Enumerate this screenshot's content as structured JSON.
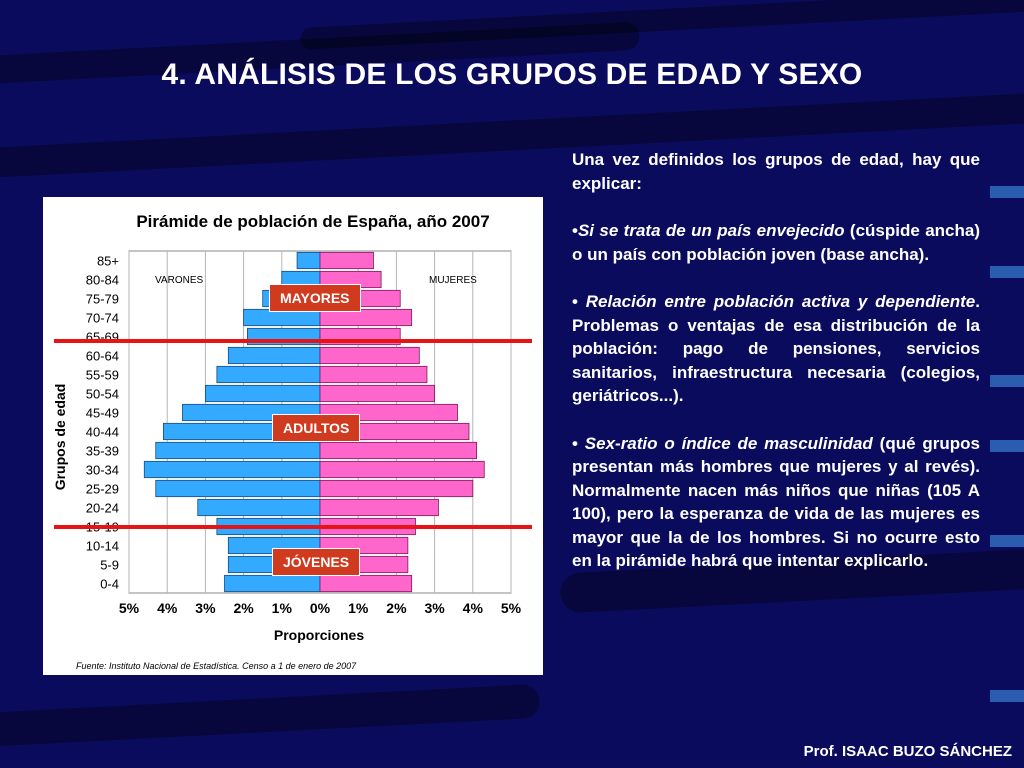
{
  "slide": {
    "title": "4. ANÁLISIS DE LOS GRUPOS DE EDAD Y SEXO",
    "credit": "Prof. ISAAC BUZO SÁNCHEZ"
  },
  "colors": {
    "background": "#0b0b5e",
    "male_bar": "#33aaff",
    "female_bar": "#ff66cc",
    "label_box": "#d03a1e",
    "red_line": "#e61414"
  },
  "regions": {
    "mayores": "MAYORES",
    "adultos": "ADULTOS",
    "jovenes": "JÓVENES"
  },
  "text": {
    "intro": "Una vez definidos los grupos de edad, hay que explicar:",
    "b1_em": "Si se trata de un país envejecido",
    "b1_rest": " (cúspide ancha) o un país con población joven (base ancha).",
    "b2_em": "Relación entre población activa y dependiente",
    "b2_rest": ". Problemas o ventajas de esa distribución de la población: pago de pensiones, servicios sanitarios, infraestructura necesaria (colegios, geriátricos...).",
    "b3_em": "Sex-ratio o índice de masculinidad",
    "b3_rest": " (qué grupos presentan más hombres que mujeres y al revés). Normalmente nacen más niños que niñas (105 A 100), pero la esperanza de vida de las mujeres es mayor que la de los hombres. Si no ocurre esto en la pirámide habrá que intentar explicarlo."
  },
  "chart_data": {
    "type": "bar",
    "orientation": "horizontal-pyramid",
    "title": "Pirámide de población de España, año 2007",
    "xlabel": "Proporciones",
    "ylabel": "Grupos de edad",
    "source": "Fuente: Instituto Nacional de Estadística. Censo a 1 de enero de 2007",
    "categories": [
      "85+",
      "80-84",
      "75-79",
      "70-74",
      "65-69",
      "60-64",
      "55-59",
      "50-54",
      "45-49",
      "40-44",
      "35-39",
      "30-34",
      "25-29",
      "20-24",
      "15-19",
      "10-14",
      "5-9",
      "0-4"
    ],
    "xticks": [
      "5%",
      "4%",
      "3%",
      "2%",
      "1%",
      "0%",
      "1%",
      "2%",
      "3%",
      "4%",
      "5%"
    ],
    "xlim": [
      -5,
      5
    ],
    "grid": true,
    "series": [
      {
        "name": "VARONES",
        "values": [
          0.6,
          1.0,
          1.5,
          2.0,
          1.9,
          2.4,
          2.7,
          3.0,
          3.6,
          4.1,
          4.3,
          4.6,
          4.3,
          3.2,
          2.7,
          2.4,
          2.4,
          2.5
        ]
      },
      {
        "name": "MUJERES",
        "values": [
          1.4,
          1.6,
          2.1,
          2.4,
          2.1,
          2.6,
          2.8,
          3.0,
          3.6,
          3.9,
          4.1,
          4.3,
          4.0,
          3.1,
          2.5,
          2.3,
          2.3,
          2.4
        ]
      }
    ]
  }
}
